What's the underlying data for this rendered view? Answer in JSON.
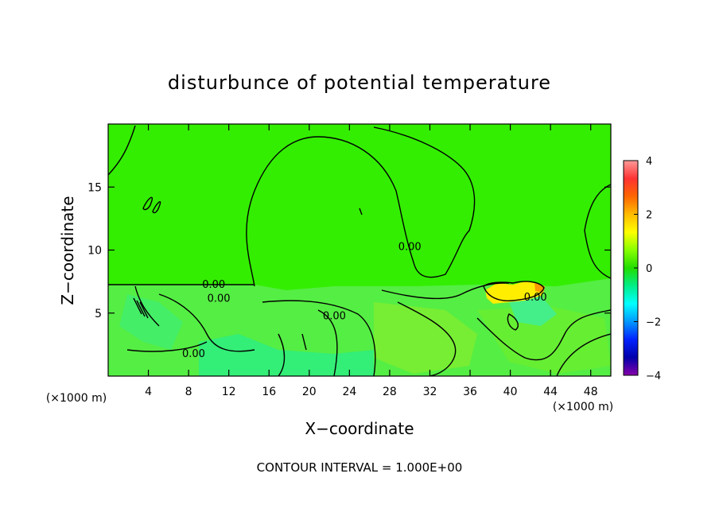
{
  "chart_data": {
    "type": "heatmap",
    "title": "disturbunce of potential temperature",
    "xlabel": "X−coordinate",
    "ylabel": "Z−coordinate",
    "x_unit_left": "(×1000 m)",
    "x_unit_right": "(×1000 m)",
    "xlim": [
      0,
      50
    ],
    "ylim": [
      0,
      20
    ],
    "x_ticks": [
      4,
      8,
      12,
      16,
      20,
      24,
      28,
      32,
      36,
      40,
      44,
      48
    ],
    "y_ticks": [
      5,
      10,
      15
    ],
    "colorbar": {
      "range": [
        -4,
        4
      ],
      "ticks": [
        4,
        2,
        0,
        -2,
        -4
      ],
      "colors": [
        "#ff9a9a",
        "#ff3333",
        "#ff6600",
        "#ffbb00",
        "#ffff00",
        "#88ff00",
        "#22dd00",
        "#00ee88",
        "#00ffff",
        "#0099ff",
        "#0022ff",
        "#0000aa",
        "#8800aa"
      ]
    },
    "contour_labels": [
      {
        "text": "0.00",
        "x": 10.5,
        "y": 7.0
      },
      {
        "text": "0.00",
        "x": 11.0,
        "y": 5.9
      },
      {
        "text": "0.00",
        "x": 8.5,
        "y": 1.5
      },
      {
        "text": "0.00",
        "x": 22.5,
        "y": 4.5
      },
      {
        "text": "0.00",
        "x": 30.0,
        "y": 10.0
      },
      {
        "text": "0.00",
        "x": 42.5,
        "y": 6.0
      }
    ],
    "footer": "CONTOUR INTERVAL = 1.000E+00"
  }
}
